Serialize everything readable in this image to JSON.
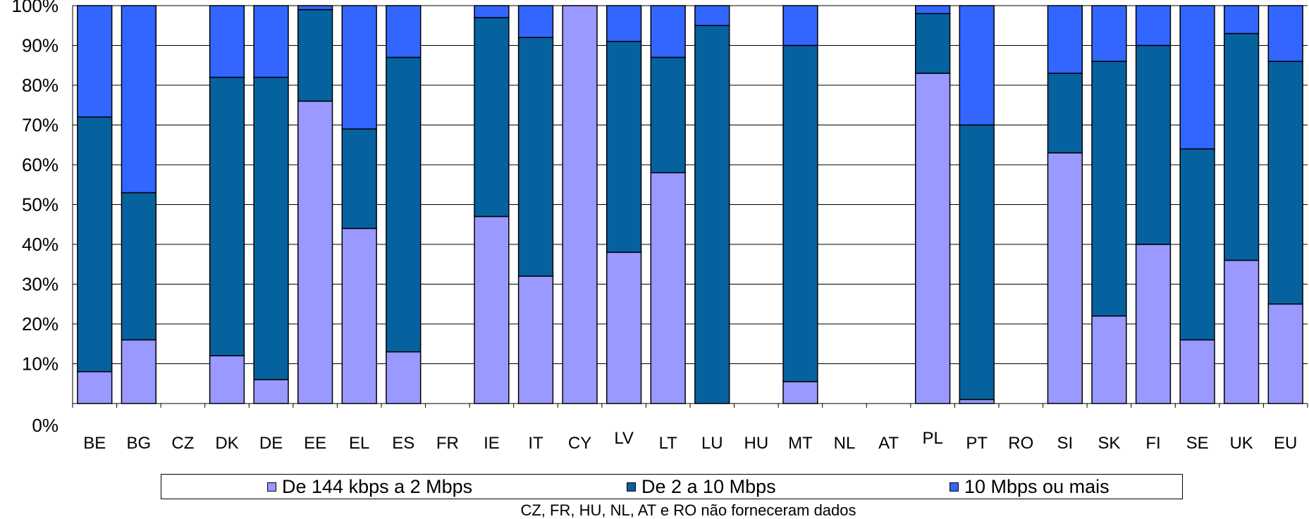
{
  "chart_data": {
    "type": "bar",
    "stacked": true,
    "categories": [
      "BE",
      "BG",
      "CZ",
      "DK",
      "DE",
      "EE",
      "EL",
      "ES",
      "FR",
      "IE",
      "IT",
      "CY",
      "LV",
      "LT",
      "LU",
      "HU",
      "MT",
      "NL",
      "AT",
      "PL",
      "PT",
      "RO",
      "SI",
      "SK",
      "FI",
      "SE",
      "UK",
      "EU"
    ],
    "series": [
      {
        "name": "De 144 kbps a 2 Mbps",
        "color": "#9999ff",
        "values": [
          8,
          16,
          null,
          12,
          6,
          76,
          44,
          13,
          null,
          47,
          32,
          100,
          38,
          58,
          0,
          null,
          5.5,
          null,
          null,
          83,
          1,
          null,
          63,
          22,
          40,
          16,
          36,
          25
        ]
      },
      {
        "name": "De 2 a 10 Mbps",
        "color": "#06629f",
        "values": [
          64,
          37,
          null,
          70,
          76,
          23,
          25,
          74,
          null,
          50,
          60,
          0,
          53,
          29,
          95,
          null,
          84.5,
          null,
          null,
          15,
          69,
          null,
          20,
          64,
          50,
          48,
          57,
          61
        ]
      },
      {
        "name": "10 Mbps ou mais",
        "color": "#3366ff",
        "values": [
          28,
          47,
          null,
          18,
          18,
          1,
          31,
          13,
          null,
          3,
          8,
          0,
          9,
          13,
          5,
          null,
          10,
          null,
          null,
          2,
          30,
          null,
          17,
          14,
          10,
          36,
          7,
          14
        ]
      }
    ],
    "ylim": [
      0,
      100
    ],
    "yticks": [
      "0%",
      "10%",
      "20%",
      "30%",
      "40%",
      "50%",
      "60%",
      "70%",
      "80%",
      "90%",
      "100%"
    ],
    "grid": true,
    "legend_position": "bottom",
    "footnote": "CZ, FR, HU, NL, AT e RO não forneceram dados"
  }
}
